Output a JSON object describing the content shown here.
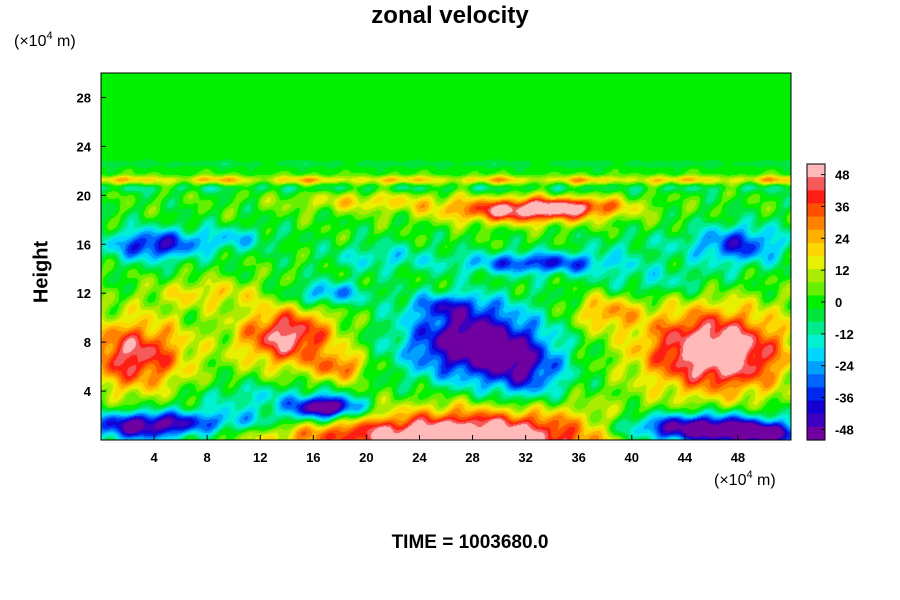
{
  "chart_data": {
    "type": "heatmap",
    "title": "zonal velocity",
    "ylabel": "Height",
    "y_unit_prefix": "(×10",
    "y_unit_exp": "4",
    "y_unit_suffix": " m)",
    "x_unit_prefix": "(×10",
    "x_unit_exp": "4",
    "x_unit_suffix": " m)",
    "x_range": [
      0,
      52
    ],
    "y_range": [
      0,
      30
    ],
    "x_ticks": [
      4,
      8,
      12,
      16,
      20,
      24,
      28,
      32,
      36,
      40,
      44,
      48
    ],
    "y_ticks": [
      4,
      8,
      12,
      16,
      20,
      24,
      28
    ],
    "colorbar": {
      "range": [
        -52,
        52
      ],
      "ticks": [
        48,
        36,
        24,
        12,
        0,
        -12,
        -24,
        -36,
        -48
      ],
      "placement": "right"
    },
    "features": [
      {
        "x": 29,
        "y": 0.3,
        "sx": 10,
        "sy": 2.4,
        "v": 58
      },
      {
        "x": 18,
        "y": 0.5,
        "sx": 9,
        "sy": 1.2,
        "v": 22
      },
      {
        "x": 46,
        "y": 7.5,
        "sx": 5.5,
        "sy": 3.4,
        "v": 56
      },
      {
        "x": 48,
        "y": 6.0,
        "sx": 4,
        "sy": 2.5,
        "v": 10
      },
      {
        "x": 2.5,
        "y": 7.0,
        "sx": 4,
        "sy": 3.0,
        "v": 46
      },
      {
        "x": 14,
        "y": 8.5,
        "sx": 3.6,
        "sy": 2.4,
        "v": 50
      },
      {
        "x": 18,
        "y": 6.0,
        "sx": 2,
        "sy": 1.2,
        "v": 30
      },
      {
        "x": 28,
        "y": 8.0,
        "sx": 5,
        "sy": 3.0,
        "v": -58
      },
      {
        "x": 32,
        "y": 5.5,
        "sx": 3,
        "sy": 2.5,
        "v": -30
      },
      {
        "x": 17,
        "y": 2.7,
        "sx": 2.5,
        "sy": 0.9,
        "v": -60
      },
      {
        "x": 12,
        "y": 3.5,
        "sx": 5,
        "sy": 1.2,
        "v": -15
      },
      {
        "x": 7,
        "y": 1.5,
        "sx": 8,
        "sy": 1.0,
        "v": -28
      },
      {
        "x": 3,
        "y": 1.0,
        "sx": 4,
        "sy": 1.2,
        "v": -35
      },
      {
        "x": 45,
        "y": 1.0,
        "sx": 6,
        "sy": 1.2,
        "v": -62
      },
      {
        "x": 50,
        "y": 0.5,
        "sx": 3,
        "sy": 0.8,
        "v": -40
      },
      {
        "x": 32,
        "y": 18.8,
        "sx": 6,
        "sy": 1.0,
        "v": 52
      },
      {
        "x": 36,
        "y": 19.2,
        "sx": 4,
        "sy": 0.7,
        "v": 20
      },
      {
        "x": 20,
        "y": 19.5,
        "sx": 6,
        "sy": 0.8,
        "v": 18
      },
      {
        "x": 4,
        "y": 16.0,
        "sx": 3.5,
        "sy": 1.3,
        "v": -40
      },
      {
        "x": 10,
        "y": 16.5,
        "sx": 3,
        "sy": 1.0,
        "v": -18
      },
      {
        "x": 48,
        "y": 16.0,
        "sx": 3.5,
        "sy": 1.6,
        "v": -36
      },
      {
        "x": 33,
        "y": 14.5,
        "sx": 6,
        "sy": 0.9,
        "v": -36
      },
      {
        "x": 21,
        "y": 15.0,
        "sx": 4,
        "sy": 1.2,
        "v": -16
      },
      {
        "x": 17,
        "y": 12.0,
        "sx": 3,
        "sy": 1.0,
        "v": -28
      },
      {
        "x": 42,
        "y": 13.0,
        "sx": 5,
        "sy": 1.3,
        "v": -14
      },
      {
        "x": 8,
        "y": 12.0,
        "sx": 4,
        "sy": 1.2,
        "v": 18
      },
      {
        "x": 40,
        "y": 16.0,
        "sx": 4,
        "sy": 1.0,
        "v": -8
      },
      {
        "x": 26,
        "y": 11.0,
        "sx": 3,
        "sy": 1.0,
        "v": -22
      },
      {
        "x": 38,
        "y": 10.5,
        "sx": 2.5,
        "sy": 1.5,
        "v": 25
      }
    ],
    "bands": [
      {
        "y": 21.3,
        "s": 0.35,
        "v": 24
      },
      {
        "y": 22.6,
        "s": 0.3,
        "v": -6
      },
      {
        "y": 20.6,
        "s": 0.35,
        "v": -8
      }
    ]
  },
  "time_label": "TIME = 1003680.0"
}
